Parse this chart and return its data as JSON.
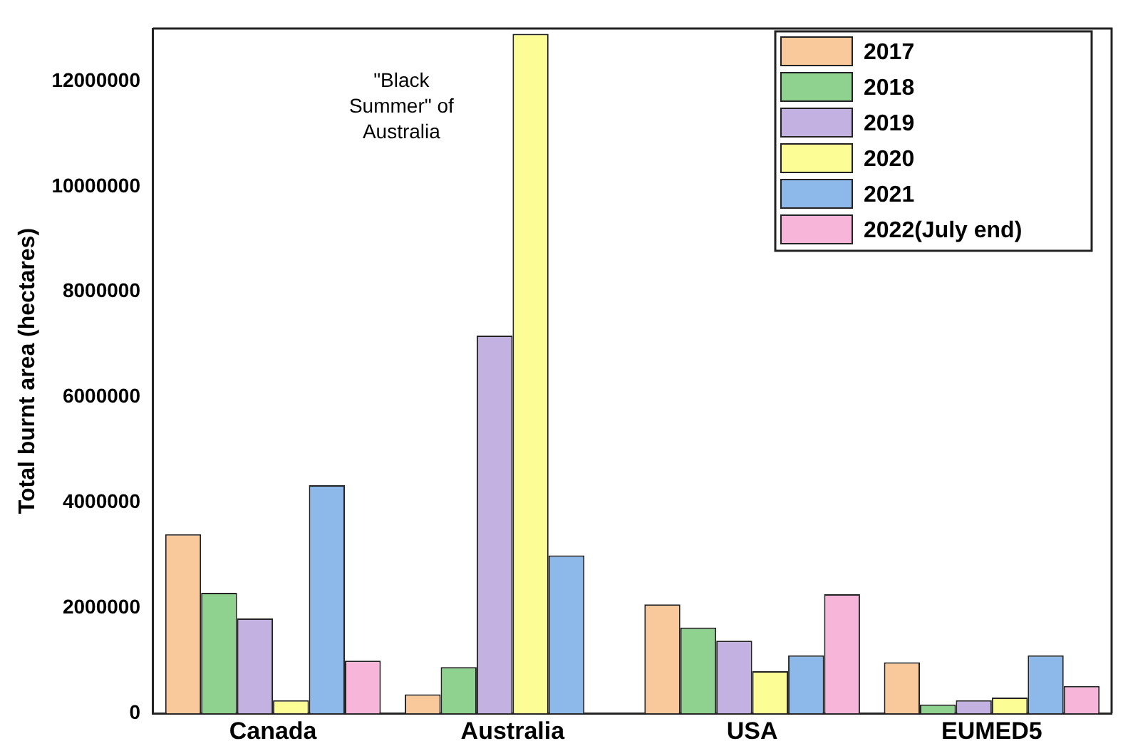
{
  "chart_data": {
    "type": "bar",
    "ylabel": "Total burnt area (hectares)",
    "categories": [
      "Canada",
      "Australia",
      "USA",
      "EUMED5"
    ],
    "series": [
      {
        "name": "2017",
        "color": "#f9c89b",
        "values": [
          3400000,
          360000,
          2070000,
          970000
        ]
      },
      {
        "name": "2018",
        "color": "#8fd18f",
        "values": [
          2290000,
          880000,
          1630000,
          170000
        ]
      },
      {
        "name": "2019",
        "color": "#c3b1e1",
        "values": [
          1800000,
          7170000,
          1380000,
          250000
        ]
      },
      {
        "name": "2020",
        "color": "#fdfd96",
        "values": [
          250000,
          12900000,
          800000,
          300000
        ]
      },
      {
        "name": "2021",
        "color": "#8db8ea",
        "values": [
          4330000,
          3000000,
          1100000,
          1100000
        ]
      },
      {
        "name": "2022(July end)",
        "color": "#f7b6d9",
        "values": [
          1000000,
          null,
          2260000,
          520000
        ]
      }
    ],
    "ylim": [
      0,
      13000000
    ],
    "yticks": [
      0,
      2000000,
      4000000,
      6000000,
      8000000,
      10000000,
      12000000
    ],
    "grid": false,
    "legend": "top right",
    "annotations": [
      {
        "text": "\"Black Summer\" of Australia",
        "x": "Australia",
        "y": 12000000
      }
    ]
  }
}
